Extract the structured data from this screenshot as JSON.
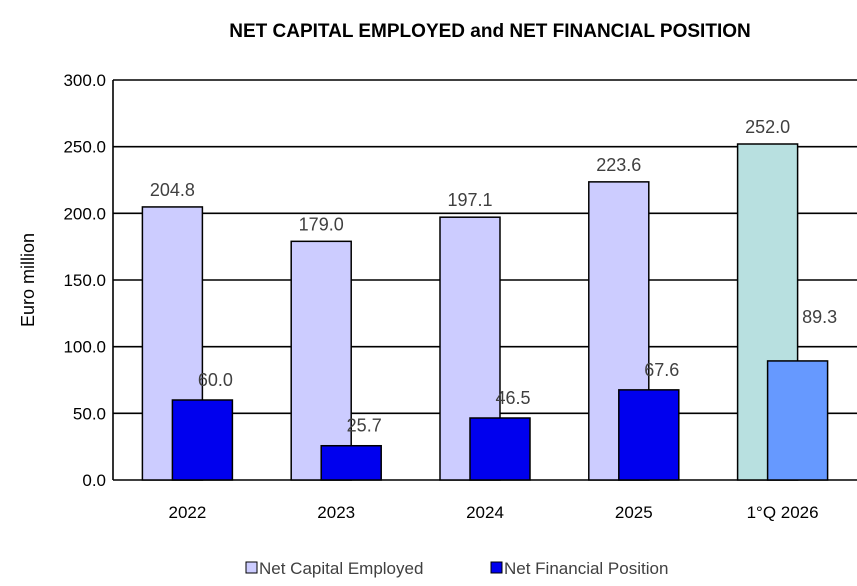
{
  "chart_data": {
    "type": "bar",
    "title": "NET CAPITAL EMPLOYED and NET FINANCIAL  POSITION",
    "ylabel": "Euro million",
    "xlabel": "",
    "ylim": [
      0,
      300
    ],
    "yticks": [
      0,
      50,
      100,
      150,
      200,
      250,
      300
    ],
    "ytick_labels": [
      "0.0",
      "50.0",
      "100.0",
      "150.0",
      "200.0",
      "250.0",
      "300.0"
    ],
    "grid": true,
    "legend_position": "bottom",
    "categories": [
      "2022",
      "2023",
      "2024",
      "2025",
      "1°Q 2026"
    ],
    "series": [
      {
        "name": "Net Capital Employed",
        "values": [
          204.8,
          179.0,
          197.1,
          223.6,
          252.0
        ],
        "labels": [
          "204.8",
          "179.0",
          "197.1",
          "223.6",
          "252.0"
        ],
        "color": "#ccccff",
        "last_color": "#b8e0e0"
      },
      {
        "name": "Net Financial Position",
        "values": [
          60.0,
          25.7,
          46.5,
          67.6,
          89.3
        ],
        "labels": [
          "60.0",
          "25.7",
          "46.5",
          "67.6",
          "89.3"
        ],
        "color": "#0000ee",
        "last_color": "#6699ff"
      }
    ]
  }
}
